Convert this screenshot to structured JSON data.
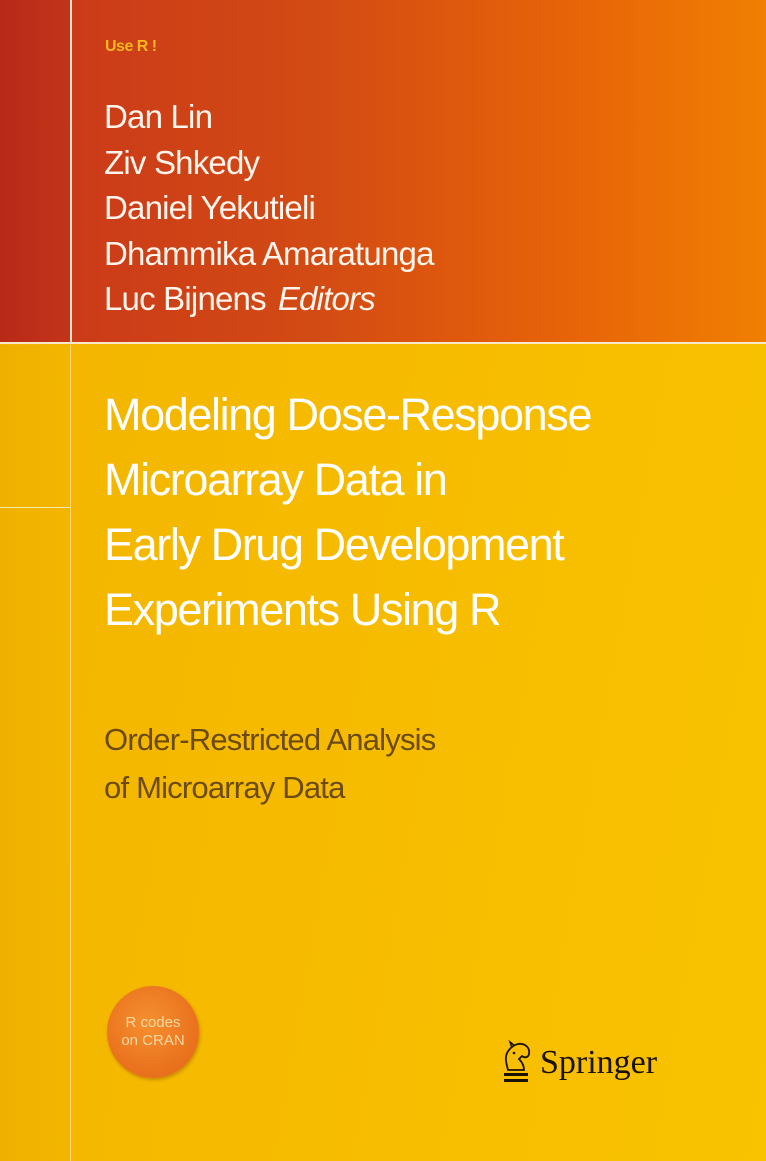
{
  "series": "Use R !",
  "editors": [
    "Dan Lin",
    "Ziv Shkedy",
    "Daniel Yekutieli",
    "Dhammika Amaratunga",
    "Luc Bijnens"
  ],
  "editors_label": "Editors",
  "title_lines": [
    "Modeling Dose-Response",
    "Microarray Data in",
    "Early Drug Development",
    "Experiments Using R"
  ],
  "subtitle_lines": [
    "Order-Restricted Analysis",
    "of Microarray Data"
  ],
  "badge_lines": [
    "R codes",
    "on CRAN"
  ],
  "publisher": "Springer",
  "publisher_logo_icon": "knight-horse-icon",
  "colors": {
    "top_band": "#d24a14",
    "bottom_band": "#f7bd00",
    "title": "#ffffff",
    "subtitle": "#6b4b12",
    "badge": "#e9701c"
  }
}
